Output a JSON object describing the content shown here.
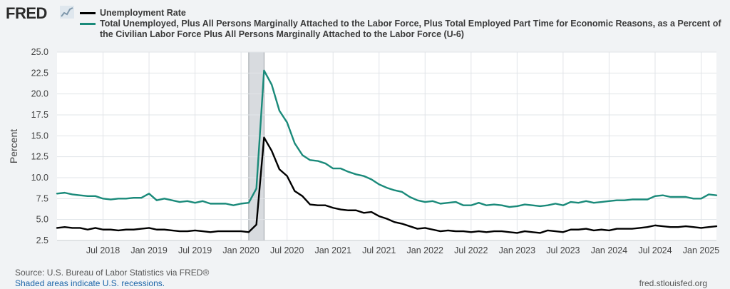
{
  "logo": {
    "text": "FRED"
  },
  "legend": [
    {
      "name": "Unemployment Rate",
      "color": "#000000"
    },
    {
      "name": "Total Unemployed, Plus All Persons Marginally Attached to the Labor Force, Plus Total Employed Part Time for Economic Reasons, as a Percent of the Civilian Labor Force Plus All Persons Marginally Attached to the Labor Force (U-6)",
      "color": "#1a8a7a"
    }
  ],
  "footer": {
    "source": "Source: U.S. Bureau of Labor Statistics via FRED®",
    "note": "Shaded areas indicate U.S. recessions.",
    "site": "fred.stlouisfed.org"
  },
  "chart_data": {
    "type": "line",
    "ylabel": "Percent",
    "ylim": [
      2.5,
      25.0
    ],
    "yticks": [
      "2.5",
      "5.0",
      "7.5",
      "10.0",
      "12.5",
      "15.0",
      "17.5",
      "20.0",
      "22.5",
      "25.0"
    ],
    "xlim": [
      "2018-01",
      "2025-03"
    ],
    "xticks": [
      {
        "label": "Jul 2018",
        "date": "2018-07"
      },
      {
        "label": "Jan 2019",
        "date": "2019-01"
      },
      {
        "label": "Jul 2019",
        "date": "2019-07"
      },
      {
        "label": "Jan 2020",
        "date": "2020-01"
      },
      {
        "label": "Jul 2020",
        "date": "2020-07"
      },
      {
        "label": "Jan 2021",
        "date": "2021-01"
      },
      {
        "label": "Jul 2021",
        "date": "2021-07"
      },
      {
        "label": "Jan 2022",
        "date": "2022-01"
      },
      {
        "label": "Jul 2022",
        "date": "2022-07"
      },
      {
        "label": "Jan 2023",
        "date": "2023-01"
      },
      {
        "label": "Jul 2023",
        "date": "2023-07"
      },
      {
        "label": "Jan 2024",
        "date": "2024-01"
      },
      {
        "label": "Jul 2024",
        "date": "2024-07"
      },
      {
        "label": "Jan 2025",
        "date": "2025-01"
      }
    ],
    "recessions": [
      {
        "start": "2020-02",
        "end": "2020-04"
      }
    ],
    "grid": true,
    "series": [
      {
        "name": "Unemployment Rate",
        "color": "#000000",
        "x": [
          "2018-01",
          "2018-02",
          "2018-03",
          "2018-04",
          "2018-05",
          "2018-06",
          "2018-07",
          "2018-08",
          "2018-09",
          "2018-10",
          "2018-11",
          "2018-12",
          "2019-01",
          "2019-02",
          "2019-03",
          "2019-04",
          "2019-05",
          "2019-06",
          "2019-07",
          "2019-08",
          "2019-09",
          "2019-10",
          "2019-11",
          "2019-12",
          "2020-01",
          "2020-02",
          "2020-03",
          "2020-04",
          "2020-05",
          "2020-06",
          "2020-07",
          "2020-08",
          "2020-09",
          "2020-10",
          "2020-11",
          "2020-12",
          "2021-01",
          "2021-02",
          "2021-03",
          "2021-04",
          "2021-05",
          "2021-06",
          "2021-07",
          "2021-08",
          "2021-09",
          "2021-10",
          "2021-11",
          "2021-12",
          "2022-01",
          "2022-02",
          "2022-03",
          "2022-04",
          "2022-05",
          "2022-06",
          "2022-07",
          "2022-08",
          "2022-09",
          "2022-10",
          "2022-11",
          "2022-12",
          "2023-01",
          "2023-02",
          "2023-03",
          "2023-04",
          "2023-05",
          "2023-06",
          "2023-07",
          "2023-08",
          "2023-09",
          "2023-10",
          "2023-11",
          "2023-12",
          "2024-01",
          "2024-02",
          "2024-03",
          "2024-04",
          "2024-05",
          "2024-06",
          "2024-07",
          "2024-08",
          "2024-09",
          "2024-10",
          "2024-11",
          "2024-12",
          "2025-01",
          "2025-02",
          "2025-03"
        ],
        "values": [
          4.0,
          4.1,
          4.0,
          4.0,
          3.8,
          4.0,
          3.8,
          3.8,
          3.7,
          3.8,
          3.8,
          3.9,
          4.0,
          3.8,
          3.8,
          3.7,
          3.6,
          3.6,
          3.7,
          3.6,
          3.5,
          3.6,
          3.6,
          3.6,
          3.6,
          3.5,
          4.4,
          14.8,
          13.2,
          11.0,
          10.2,
          8.4,
          7.8,
          6.8,
          6.7,
          6.7,
          6.4,
          6.2,
          6.1,
          6.1,
          5.8,
          5.9,
          5.4,
          5.1,
          4.7,
          4.5,
          4.2,
          3.9,
          4.0,
          3.8,
          3.6,
          3.7,
          3.6,
          3.6,
          3.5,
          3.6,
          3.5,
          3.6,
          3.6,
          3.5,
          3.4,
          3.6,
          3.5,
          3.4,
          3.7,
          3.6,
          3.5,
          3.8,
          3.8,
          3.9,
          3.7,
          3.8,
          3.7,
          3.9,
          3.9,
          3.9,
          4.0,
          4.1,
          4.3,
          4.2,
          4.1,
          4.1,
          4.2,
          4.1,
          4.0,
          4.1,
          4.2
        ]
      },
      {
        "name": "Total Unemployed, Plus All Persons Marginally Attached to the Labor Force, Plus Total Employed Part Time for Economic Reasons, as a Percent of the Civilian Labor Force Plus All Persons Marginally Attached to the Labor Force (U-6)",
        "color": "#1a8a7a",
        "x": [
          "2018-01",
          "2018-02",
          "2018-03",
          "2018-04",
          "2018-05",
          "2018-06",
          "2018-07",
          "2018-08",
          "2018-09",
          "2018-10",
          "2018-11",
          "2018-12",
          "2019-01",
          "2019-02",
          "2019-03",
          "2019-04",
          "2019-05",
          "2019-06",
          "2019-07",
          "2019-08",
          "2019-09",
          "2019-10",
          "2019-11",
          "2019-12",
          "2020-01",
          "2020-02",
          "2020-03",
          "2020-04",
          "2020-05",
          "2020-06",
          "2020-07",
          "2020-08",
          "2020-09",
          "2020-10",
          "2020-11",
          "2020-12",
          "2021-01",
          "2021-02",
          "2021-03",
          "2021-04",
          "2021-05",
          "2021-06",
          "2021-07",
          "2021-08",
          "2021-09",
          "2021-10",
          "2021-11",
          "2021-12",
          "2022-01",
          "2022-02",
          "2022-03",
          "2022-04",
          "2022-05",
          "2022-06",
          "2022-07",
          "2022-08",
          "2022-09",
          "2022-10",
          "2022-11",
          "2022-12",
          "2023-01",
          "2023-02",
          "2023-03",
          "2023-04",
          "2023-05",
          "2023-06",
          "2023-07",
          "2023-08",
          "2023-09",
          "2023-10",
          "2023-11",
          "2023-12",
          "2024-01",
          "2024-02",
          "2024-03",
          "2024-04",
          "2024-05",
          "2024-06",
          "2024-07",
          "2024-08",
          "2024-09",
          "2024-10",
          "2024-11",
          "2024-12",
          "2025-01",
          "2025-02",
          "2025-03"
        ],
        "values": [
          8.1,
          8.2,
          8.0,
          7.9,
          7.8,
          7.8,
          7.5,
          7.4,
          7.5,
          7.5,
          7.6,
          7.6,
          8.1,
          7.3,
          7.5,
          7.3,
          7.1,
          7.2,
          7.0,
          7.2,
          6.9,
          6.9,
          6.9,
          6.7,
          6.9,
          7.0,
          8.7,
          22.8,
          21.1,
          18.0,
          16.6,
          14.1,
          12.7,
          12.1,
          12.0,
          11.7,
          11.1,
          11.1,
          10.7,
          10.4,
          10.2,
          9.8,
          9.2,
          8.8,
          8.5,
          8.3,
          7.7,
          7.3,
          7.1,
          7.2,
          6.9,
          7.0,
          7.1,
          6.7,
          6.7,
          7.0,
          6.7,
          6.8,
          6.7,
          6.5,
          6.6,
          6.8,
          6.7,
          6.6,
          6.7,
          6.9,
          6.7,
          7.1,
          7.0,
          7.2,
          7.0,
          7.1,
          7.2,
          7.3,
          7.3,
          7.4,
          7.4,
          7.4,
          7.8,
          7.9,
          7.7,
          7.7,
          7.7,
          7.5,
          7.5,
          8.0,
          7.9
        ]
      }
    ]
  }
}
